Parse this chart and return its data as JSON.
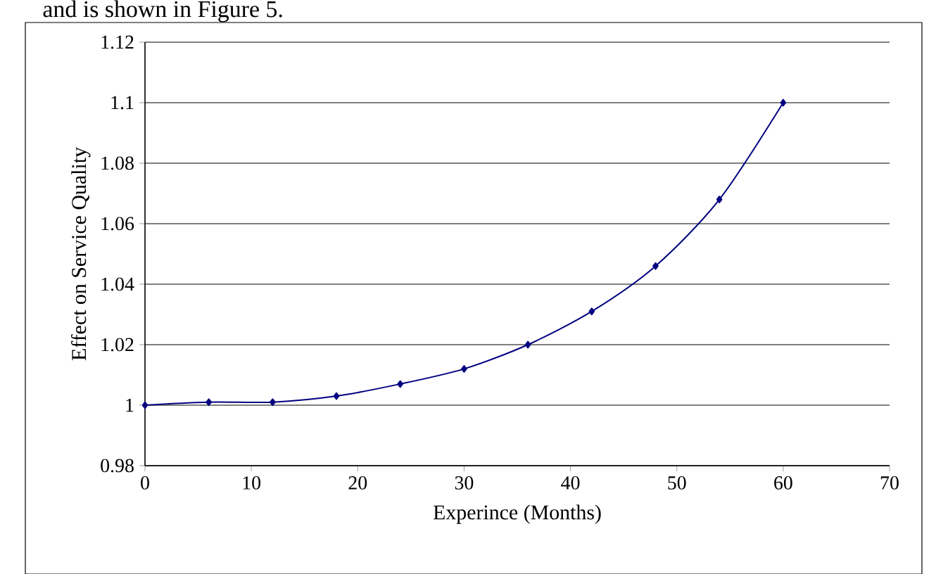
{
  "chart_data": {
    "type": "line",
    "xlabel": "Experince (Months)",
    "ylabel": "Effect on Service Quality",
    "annotations": [
      "and is shown in Figure 5."
    ],
    "x": [
      0,
      6,
      12,
      18,
      24,
      30,
      36,
      42,
      48,
      54,
      60
    ],
    "series": [
      {
        "color": "#000080",
        "values": [
          1.0,
          1.001,
          1.001,
          1.003,
          1.007,
          1.012,
          1.02,
          1.031,
          1.046,
          1.068,
          1.1
        ]
      }
    ],
    "xlim": [
      0,
      70
    ],
    "xticks": [
      0,
      10,
      20,
      30,
      40,
      50,
      60,
      70
    ],
    "ylim": [
      0.98,
      1.12
    ],
    "yticks": [
      0.98,
      1,
      1.02,
      1.04,
      1.06,
      1.08,
      1.1,
      1.12
    ],
    "grid": "y",
    "marker": "diamond",
    "line_style": "solid"
  }
}
